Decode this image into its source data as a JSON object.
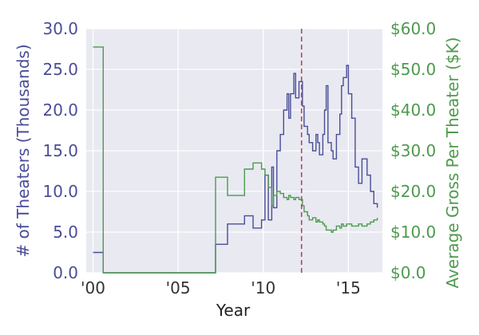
{
  "chart_data": {
    "type": "line",
    "xlabel": "Year",
    "ylabel_left": "# of Theaters (Thousands)",
    "ylabel_right": "Average Gross Per Theater ($K)",
    "xlim": [
      1999.6,
      2017.0
    ],
    "ylim_left": [
      0,
      30
    ],
    "ylim_right": [
      0,
      60
    ],
    "x_ticks": [
      2000,
      2005,
      2010,
      2015
    ],
    "x_tick_labels": [
      "'00",
      "'05",
      "'10",
      "'15"
    ],
    "y_left_ticks": [
      0,
      5,
      10,
      15,
      20,
      25,
      30
    ],
    "y_left_tick_labels": [
      "0.0",
      "5.0",
      "10.0",
      "15.0",
      "20.0",
      "25.0",
      "30.0"
    ],
    "y_right_ticks": [
      0,
      10,
      20,
      30,
      40,
      50,
      60
    ],
    "y_right_tick_labels": [
      "$0.0",
      "$10.0",
      "$20.0",
      "$30.0",
      "$40.0",
      "$50.0",
      "$60.0"
    ],
    "grid": true,
    "vline_x": 2012.25,
    "colors": {
      "theaters": "#4a4d97",
      "gross": "#4d9a4d",
      "vline": "#a35060",
      "background": "#e8e9f1",
      "grid": "#ffffff"
    },
    "series": [
      {
        "axis": "left",
        "step": true,
        "x": [
          2000.0,
          2000.6,
          2007.2,
          2007.9,
          2008.9,
          2009.4,
          2009.9,
          2010.1,
          2010.3,
          2010.5,
          2010.6,
          2010.8,
          2011.0,
          2011.2,
          2011.4,
          2011.5,
          2011.6,
          2011.8,
          2011.9,
          2012.1,
          2012.3,
          2012.4,
          2012.6,
          2012.7,
          2012.9,
          2013.1,
          2013.2,
          2013.3,
          2013.5,
          2013.6,
          2013.7,
          2013.8,
          2014.0,
          2014.1,
          2014.3,
          2014.5,
          2014.6,
          2014.7,
          2014.9,
          2015.0,
          2015.2,
          2015.4,
          2015.6,
          2015.8,
          2016.1,
          2016.3,
          2016.5,
          2016.7
        ],
        "values": [
          2.5,
          0.0,
          3.5,
          6.0,
          7.0,
          5.5,
          6.5,
          12.0,
          6.5,
          13.0,
          8.0,
          15.0,
          17.0,
          20.0,
          22.0,
          19.0,
          22.0,
          24.5,
          21.5,
          23.5,
          20.5,
          18.0,
          17.0,
          16.0,
          15.0,
          17.0,
          16.0,
          14.5,
          17.0,
          20.0,
          23.0,
          16.0,
          15.0,
          14.0,
          17.0,
          19.5,
          23.0,
          24.0,
          25.5,
          22.0,
          19.0,
          13.0,
          11.0,
          14.0,
          12.0,
          10.0,
          8.5,
          8.0
        ]
      },
      {
        "axis": "right",
        "step": true,
        "x": [
          2000.0,
          2000.6,
          2007.2,
          2007.9,
          2008.9,
          2009.4,
          2009.9,
          2010.1,
          2010.3,
          2010.5,
          2010.6,
          2010.8,
          2011.0,
          2011.2,
          2011.4,
          2011.5,
          2011.6,
          2011.8,
          2011.9,
          2012.1,
          2012.3,
          2012.4,
          2012.6,
          2012.7,
          2012.9,
          2013.1,
          2013.2,
          2013.3,
          2013.5,
          2013.6,
          2013.7,
          2013.8,
          2014.0,
          2014.1,
          2014.3,
          2014.5,
          2014.6,
          2014.7,
          2014.9,
          2015.0,
          2015.2,
          2015.4,
          2015.6,
          2015.8,
          2016.1,
          2016.3,
          2016.5,
          2016.7
        ],
        "values": [
          55.5,
          0.0,
          23.5,
          19.0,
          25.5,
          27.0,
          25.5,
          24.0,
          21.0,
          16.5,
          19.0,
          20.0,
          19.5,
          18.5,
          18.0,
          19.0,
          18.5,
          18.0,
          18.5,
          18.0,
          16.5,
          15.0,
          14.0,
          13.0,
          13.5,
          12.5,
          13.0,
          12.5,
          12.0,
          11.5,
          10.5,
          10.5,
          10.0,
          10.5,
          11.5,
          11.0,
          12.0,
          11.5,
          12.0,
          12.0,
          11.5,
          11.5,
          12.0,
          11.5,
          12.0,
          12.5,
          13.0,
          13.5
        ]
      }
    ]
  }
}
